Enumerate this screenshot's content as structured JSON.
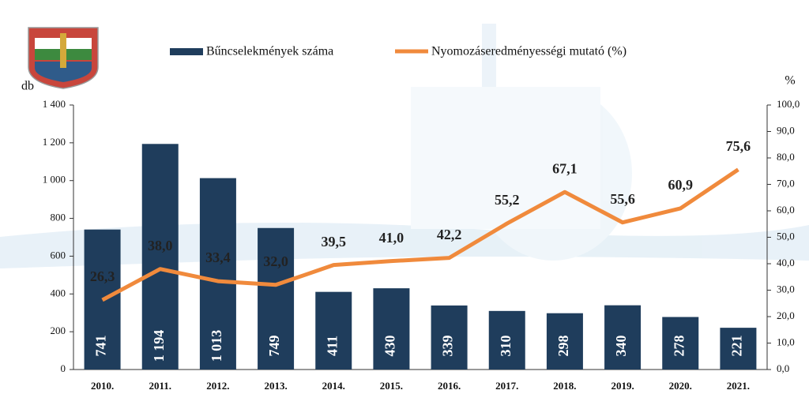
{
  "chart_data": {
    "type": "bar-line",
    "y_label": "db",
    "y2_label": "%",
    "categories": [
      "2010.",
      "2011.",
      "2012.",
      "2013.",
      "2014.",
      "2015.",
      "2016.",
      "2017.",
      "2018.",
      "2019.",
      "2020.",
      "2021."
    ],
    "series": [
      {
        "name": "Bűncselekmények száma",
        "type": "bar",
        "color": "#1f3d5c",
        "values": [
          741,
          1194,
          1013,
          749,
          411,
          430,
          339,
          310,
          298,
          340,
          278,
          221
        ],
        "value_labels": [
          "741",
          "1 194",
          "1 013",
          "749",
          "411",
          "430",
          "339",
          "310",
          "298",
          "340",
          "278",
          "221"
        ]
      },
      {
        "name": "Nyomozáseredményességi mutató (%)",
        "type": "line",
        "axis": "y2",
        "color": "#f08a3c",
        "values": [
          26.3,
          38.0,
          33.4,
          32.0,
          39.5,
          41.0,
          42.2,
          55.2,
          67.1,
          55.6,
          60.9,
          75.6
        ],
        "value_labels": [
          "26,3",
          "38,0",
          "33,4",
          "32,0",
          "39,5",
          "41,0",
          "42,2",
          "55,2",
          "67,1",
          "55,6",
          "60,9",
          "75,6"
        ]
      }
    ],
    "ylim": [
      0,
      1400
    ],
    "yticks": [
      0,
      200,
      400,
      600,
      800,
      {
        "value": 1000,
        "label": "1 000"
      },
      {
        "value": 1200,
        "label": "1 200"
      },
      {
        "value": 1400,
        "label": "1 400"
      }
    ],
    "y2lim": [
      0,
      100
    ],
    "y2ticks": [
      {
        "value": 0,
        "label": "0,0"
      },
      {
        "value": 10,
        "label": "10,0"
      },
      {
        "value": 20,
        "label": "20,0"
      },
      {
        "value": 30,
        "label": "30,0"
      },
      {
        "value": 40,
        "label": "40,0"
      },
      {
        "value": 50,
        "label": "50,0"
      },
      {
        "value": 60,
        "label": "60,0"
      },
      {
        "value": 70,
        "label": "70,0"
      },
      {
        "value": 80,
        "label": "80,0"
      },
      {
        "value": 90,
        "label": "90,0"
      },
      {
        "value": 100,
        "label": "100,0"
      }
    ]
  }
}
